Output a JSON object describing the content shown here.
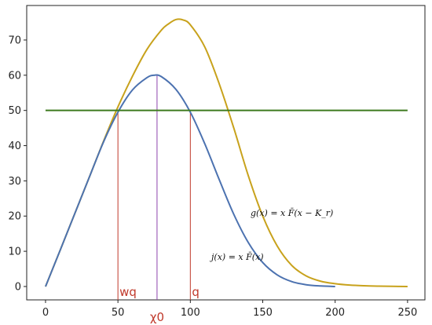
{
  "chart_data": {
    "type": "line",
    "title": "",
    "xlabel": "",
    "ylabel": "",
    "xlim": [
      -13,
      262
    ],
    "ylim": [
      -3.8,
      79.8
    ],
    "grid": false,
    "x_ticks": [
      0,
      50,
      100,
      150,
      200,
      250
    ],
    "y_ticks": [
      0,
      10,
      20,
      30,
      40,
      50,
      60,
      70
    ],
    "series": [
      {
        "label": "g(x) = x F̄(x − K_r)",
        "color": "#c8a21c",
        "x": [
          0,
          10,
          20,
          30,
          40,
          50,
          60,
          70,
          80,
          85,
          90,
          95,
          100,
          110,
          120,
          130,
          140,
          150,
          160,
          170,
          180,
          190,
          200,
          210,
          220,
          230,
          240,
          250
        ],
        "y": [
          0,
          10.2,
          20.5,
          30.8,
          41.2,
          51,
          59.7,
          67.3,
          72.8,
          74.6,
          75.8,
          75.7,
          74.3,
          68,
          57.5,
          45,
          31.5,
          20,
          11.5,
          6,
          3,
          1.5,
          0.8,
          0.4,
          0.2,
          0.1,
          0.05,
          0
        ]
      },
      {
        "label": "j(x) = x F̄(x)",
        "color": "#4c72b0",
        "x": [
          0,
          10,
          20,
          30,
          40,
          50,
          60,
          70,
          75,
          80,
          90,
          100,
          110,
          120,
          130,
          140,
          150,
          160,
          170,
          180,
          190,
          200
        ],
        "y": [
          0,
          10.2,
          20.5,
          30.8,
          41,
          49.5,
          55.8,
          59.3,
          60,
          59.6,
          56,
          49.5,
          40.5,
          30.3,
          20.5,
          12.5,
          6.8,
          3.3,
          1.4,
          0.5,
          0.15,
          0
        ]
      },
      {
        "color": "#3d7a1e",
        "x": [
          0,
          250
        ],
        "y": [
          50,
          50
        ]
      }
    ],
    "vertical_lines": [
      {
        "x": 50,
        "y_top": 49.5,
        "label": "wq",
        "color": "#c0392b"
      },
      {
        "x": 77,
        "y_top": 60,
        "label": "χ0",
        "color": "#8e44ad"
      },
      {
        "x": 100,
        "y_top": 49.5,
        "label": "q",
        "color": "#c0392b"
      }
    ]
  }
}
